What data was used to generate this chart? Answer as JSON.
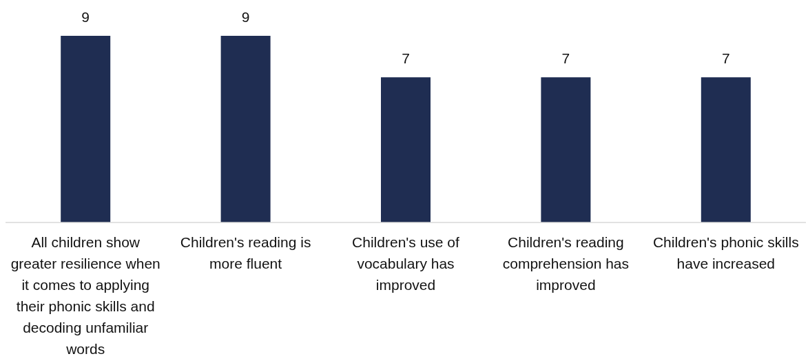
{
  "chart_data": {
    "type": "bar",
    "categories": [
      "All children show greater resilience when it comes to applying their phonic skills and decoding unfamiliar words",
      "Children's reading is more fluent",
      "Children's use of vocabulary has improved",
      "Children's reading comprehension has improved",
      "Children's phonic skills have increased"
    ],
    "values": [
      9,
      9,
      7,
      7,
      7
    ],
    "color": "#1f2d52",
    "data_labels": true
  }
}
